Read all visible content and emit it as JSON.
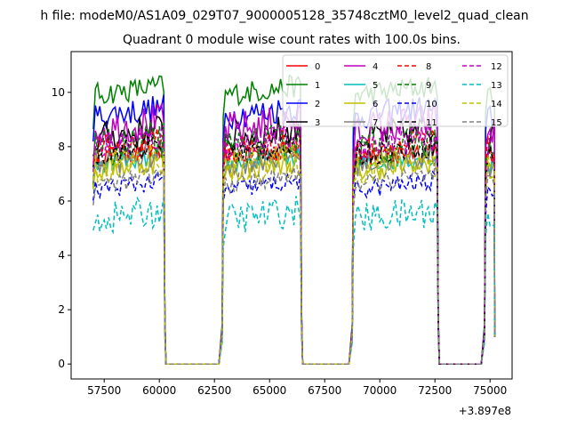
{
  "figure": {
    "suptitle": "h file: modeM0/AS1A09_029T07_9000005128_35748cztM0_level2_quad_clean",
    "title": "Quadrant 0 module wise count rates with 100.0s bins."
  },
  "chart_data": {
    "type": "line",
    "title": "Quadrant 0 module wise count rates with 100.0s bins.",
    "xlabel": "",
    "ylabel": "",
    "x_offset_label": "+3.897e8",
    "x_offset": 389700000,
    "xlim": [
      56000,
      76000
    ],
    "ylim": [
      -0.55,
      11.5
    ],
    "xticks": [
      57500,
      60000,
      62500,
      65000,
      67500,
      70000,
      72500,
      75000
    ],
    "yticks": [
      0,
      2,
      4,
      6,
      8,
      10
    ],
    "grid": false,
    "legend_location": "upper right",
    "legend_columns": 4,
    "x_note": "x values are seconds relative to x_offset (+3.897e8) as printed on the axis",
    "segments": [
      {
        "on": [
          57000,
          60200
        ],
        "down": [
          60400,
          62700
        ]
      },
      {
        "on": [
          62900,
          66400
        ],
        "down": [
          66600,
          68600
        ]
      },
      {
        "on": [
          68800,
          72600
        ],
        "down": [
          72800,
          74600
        ]
      },
      {
        "on": [
          74800,
          75200
        ],
        "down": []
      }
    ],
    "series": [
      {
        "name": "0",
        "color": "#ff0000",
        "style": "solid",
        "level": 7.6
      },
      {
        "name": "1",
        "color": "#008000",
        "style": "solid",
        "level": 9.9
      },
      {
        "name": "2",
        "color": "#0000ff",
        "style": "solid",
        "level": 9.1
      },
      {
        "name": "3",
        "color": "#000000",
        "style": "solid",
        "level": 8.3
      },
      {
        "name": "4",
        "color": "#bf00bf",
        "style": "solid",
        "level": 8.6
      },
      {
        "name": "5",
        "color": "#00bfbf",
        "style": "solid",
        "level": 7.3
      },
      {
        "name": "6",
        "color": "#bfbf00",
        "style": "solid",
        "level": 7.1
      },
      {
        "name": "7",
        "color": "#808080",
        "style": "solid",
        "level": 7.4
      },
      {
        "name": "8",
        "color": "#ff0000",
        "style": "dashed",
        "level": 7.8
      },
      {
        "name": "9",
        "color": "#008000",
        "style": "dashed",
        "level": 7.9
      },
      {
        "name": "10",
        "color": "#0000ff",
        "style": "dashed",
        "level": 6.4
      },
      {
        "name": "11",
        "color": "#000000",
        "style": "dashed",
        "level": 7.7
      },
      {
        "name": "12",
        "color": "#bf00bf",
        "style": "dashed",
        "level": 8.0
      },
      {
        "name": "13",
        "color": "#00bfbf",
        "style": "dashed",
        "level": 5.3
      },
      {
        "name": "14",
        "color": "#bfbf00",
        "style": "dashed",
        "level": 7.2
      },
      {
        "name": "15",
        "color": "#808080",
        "style": "dashed",
        "level": 6.6
      }
    ]
  }
}
